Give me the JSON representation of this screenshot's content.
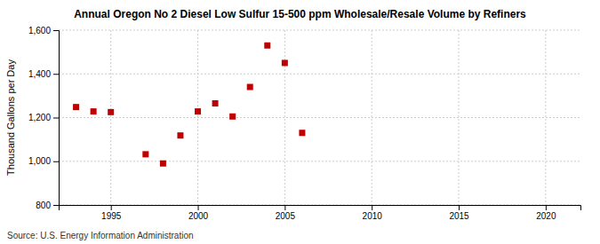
{
  "chart_data": {
    "type": "scatter",
    "title": "Annual Oregon No 2 Diesel Low Sulfur 15-500 ppm Wholesale/Resale Volume by Refiners",
    "ylabel": "Thousand Gallons per Day",
    "source": "Source: U.S. Energy Information Administration",
    "x": [
      1993,
      1994,
      1995,
      1997,
      1998,
      1999,
      2000,
      2001,
      2002,
      2003,
      2004,
      2005,
      2006
    ],
    "y": [
      1248,
      1228,
      1225,
      1032,
      990,
      1118,
      1228,
      1265,
      1205,
      1340,
      1530,
      1450,
      1130
    ],
    "color": "#c00000",
    "marker": "square",
    "xlim": [
      1992,
      2022
    ],
    "ylim": [
      800,
      1600
    ],
    "xticks": [
      1995,
      2000,
      2005,
      2010,
      2015,
      2020
    ],
    "yticks": [
      800,
      {
        "value": 1000,
        "label": "1,000"
      },
      {
        "value": 1200,
        "label": "1,200"
      },
      {
        "value": 1400,
        "label": "1,400"
      },
      {
        "value": 1600,
        "label": "1,600"
      }
    ],
    "grid": true
  }
}
